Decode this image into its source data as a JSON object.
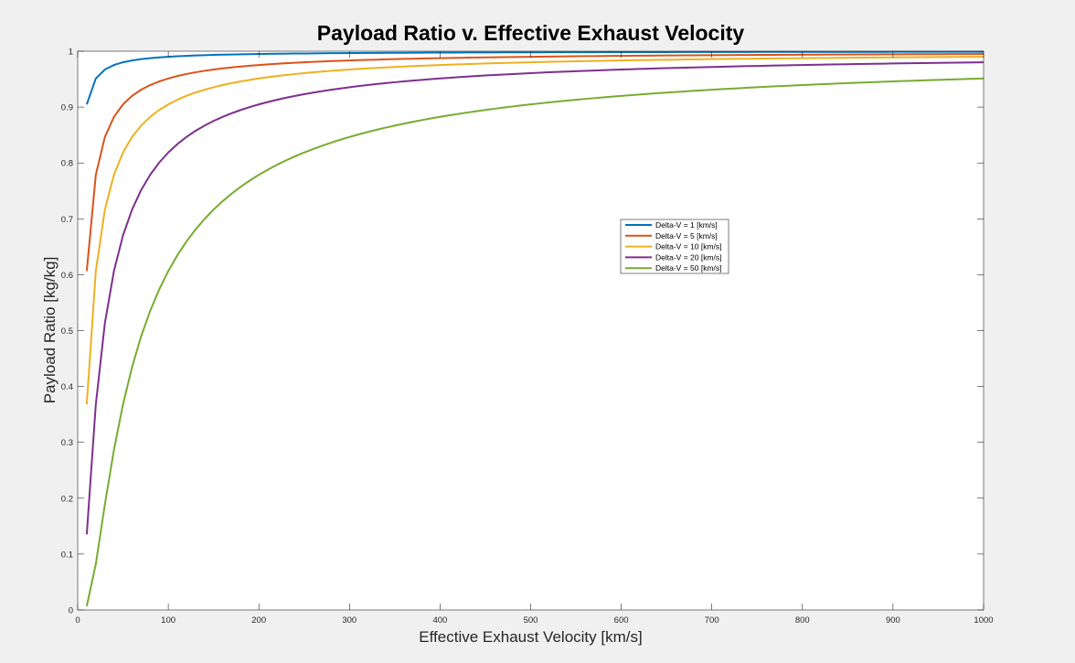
{
  "chart_data": {
    "type": "line",
    "title": "Payload Ratio v. Effective Exhaust Velocity",
    "xlabel": "Effective Exhaust Velocity [km/s]",
    "ylabel": "Payload Ratio [kg/kg]",
    "xlim": [
      0,
      1000
    ],
    "ylim": [
      0,
      1
    ],
    "xticks": [
      0,
      100,
      200,
      300,
      400,
      500,
      600,
      700,
      800,
      900,
      1000
    ],
    "yticks": [
      0,
      0.1,
      0.2,
      0.3,
      0.4,
      0.5,
      0.6,
      0.7,
      0.8,
      0.9,
      1
    ],
    "grid": false,
    "legend_position": "center-right",
    "x_sample": {
      "start": 10,
      "end": 1000,
      "step": 10
    },
    "series": [
      {
        "name": "Delta-V = 1 [km/s]",
        "color": "#0072bd",
        "delta_v": 1,
        "values": [
          [
            10,
            0.905
          ],
          [
            20,
            0.951
          ],
          [
            30,
            0.967
          ],
          [
            50,
            0.98
          ],
          [
            100,
            0.99
          ],
          [
            200,
            0.995
          ],
          [
            500,
            0.998
          ],
          [
            1000,
            0.999
          ]
        ]
      },
      {
        "name": "Delta-V = 5 [km/s]",
        "color": "#d95319",
        "delta_v": 5,
        "values": [
          [
            10,
            0.607
          ],
          [
            20,
            0.779
          ],
          [
            30,
            0.846
          ],
          [
            50,
            0.905
          ],
          [
            100,
            0.951
          ],
          [
            200,
            0.975
          ],
          [
            500,
            0.99
          ],
          [
            1000,
            0.995
          ]
        ]
      },
      {
        "name": "Delta-V = 10 [km/s]",
        "color": "#edb120",
        "delta_v": 10,
        "values": [
          [
            10,
            0.368
          ],
          [
            20,
            0.607
          ],
          [
            30,
            0.717
          ],
          [
            50,
            0.819
          ],
          [
            100,
            0.905
          ],
          [
            200,
            0.951
          ],
          [
            500,
            0.98
          ],
          [
            1000,
            0.99
          ]
        ]
      },
      {
        "name": "Delta-V = 20 [km/s]",
        "color": "#7e2f8e",
        "delta_v": 20,
        "values": [
          [
            10,
            0.135
          ],
          [
            20,
            0.368
          ],
          [
            30,
            0.513
          ],
          [
            50,
            0.67
          ],
          [
            100,
            0.819
          ],
          [
            200,
            0.905
          ],
          [
            500,
            0.961
          ],
          [
            1000,
            0.98
          ]
        ]
      },
      {
        "name": "Delta-V = 50 [km/s]",
        "color": "#77ac30",
        "delta_v": 50,
        "values": [
          [
            10,
            0.007
          ],
          [
            20,
            0.082
          ],
          [
            30,
            0.189
          ],
          [
            50,
            0.368
          ],
          [
            100,
            0.607
          ],
          [
            200,
            0.779
          ],
          [
            500,
            0.905
          ],
          [
            1000,
            0.951
          ]
        ]
      }
    ]
  }
}
